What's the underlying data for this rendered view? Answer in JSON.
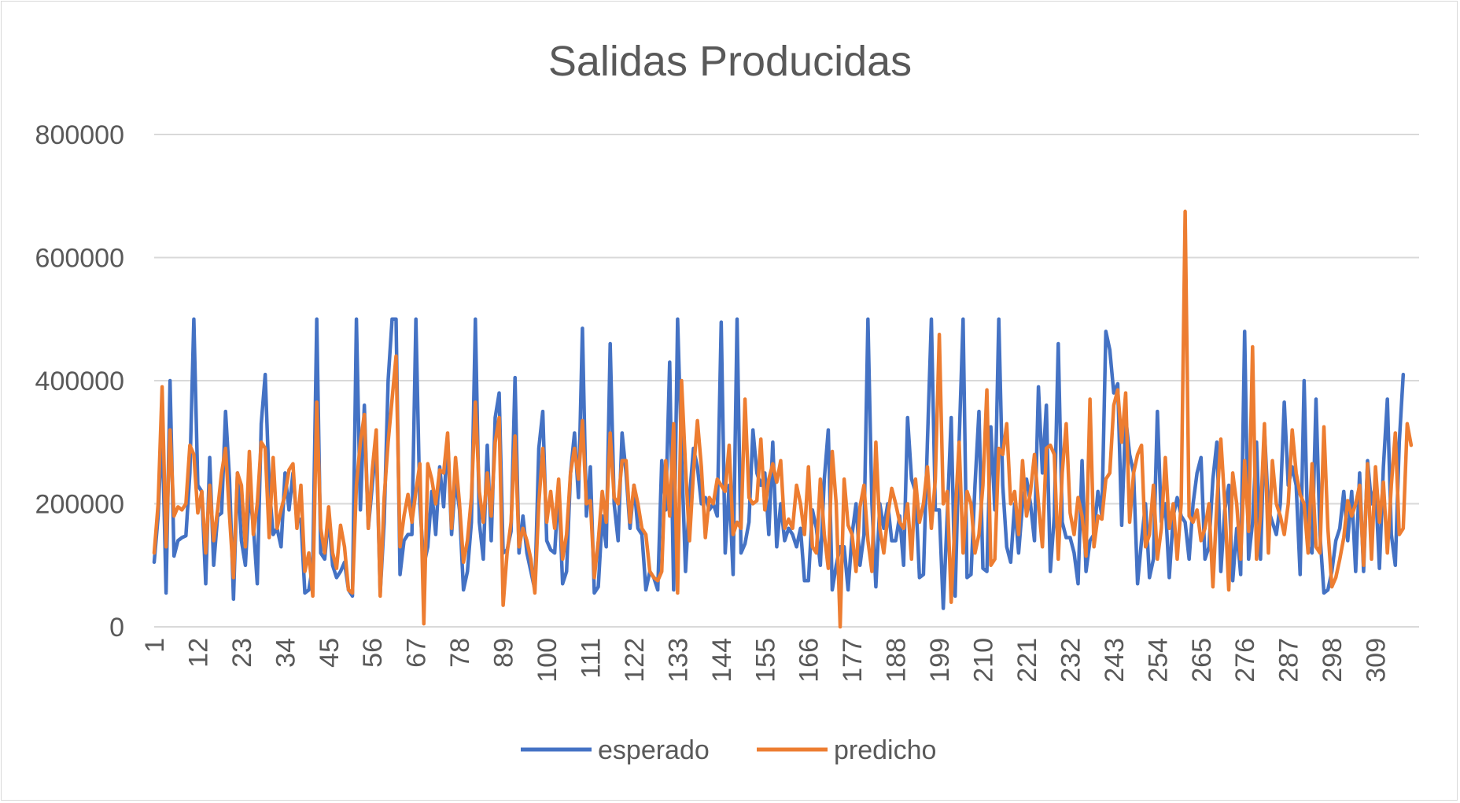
{
  "chart_data": {
    "type": "line",
    "title": "Salidas Producidas",
    "xlabel": "",
    "ylabel": "",
    "ylim": [
      0,
      800000
    ],
    "yticks": [
      0,
      200000,
      400000,
      600000,
      800000
    ],
    "ytick_labels": [
      "0",
      "200000",
      "400000",
      "600000",
      "800000"
    ],
    "x_count": 320,
    "xtick_values": [
      1,
      12,
      23,
      34,
      45,
      56,
      67,
      78,
      89,
      100,
      111,
      122,
      133,
      144,
      155,
      166,
      177,
      188,
      199,
      210,
      221,
      232,
      243,
      254,
      265,
      276,
      287,
      298,
      309
    ],
    "xtick_labels": [
      "1",
      "12",
      "23",
      "34",
      "45",
      "56",
      "67",
      "78",
      "89",
      "100",
      "111",
      "122",
      "133",
      "144",
      "155",
      "166",
      "177",
      "188",
      "199",
      "210",
      "221",
      "232",
      "243",
      "254",
      "265",
      "276",
      "287",
      "298",
      "309"
    ],
    "grid": true,
    "legend_position": "bottom",
    "series": [
      {
        "name": "esperado",
        "color": "#4472C4",
        "values": [
          105000,
          180000,
          330000,
          55000,
          400000,
          115000,
          140000,
          145000,
          148000,
          250000,
          500000,
          230000,
          220000,
          70000,
          275000,
          100000,
          180000,
          185000,
          350000,
          240000,
          45000,
          250000,
          140000,
          100000,
          220000,
          165000,
          70000,
          330000,
          410000,
          230000,
          150000,
          160000,
          130000,
          250000,
          190000,
          250000,
          170000,
          175000,
          55000,
          60000,
          100000,
          500000,
          120000,
          110000,
          180000,
          100000,
          80000,
          90000,
          105000,
          60000,
          50000,
          500000,
          190000,
          360000,
          160000,
          230000,
          300000,
          55000,
          170000,
          400000,
          500000,
          500000,
          85000,
          140000,
          150000,
          150000,
          500000,
          200000,
          100000,
          130000,
          220000,
          150000,
          260000,
          195000,
          310000,
          150000,
          240000,
          190000,
          60000,
          90000,
          170000,
          500000,
          170000,
          110000,
          295000,
          140000,
          340000,
          380000,
          120000,
          125000,
          155000,
          405000,
          120000,
          180000,
          120000,
          90000,
          60000,
          290000,
          350000,
          140000,
          125000,
          120000,
          230000,
          70000,
          90000,
          250000,
          315000,
          210000,
          485000,
          180000,
          260000,
          55000,
          65000,
          180000,
          130000,
          460000,
          200000,
          140000,
          315000,
          250000,
          160000,
          230000,
          160000,
          150000,
          60000,
          90000,
          80000,
          60000,
          270000,
          190000,
          430000,
          60000,
          500000,
          280000,
          90000,
          210000,
          290000,
          260000,
          200000,
          210000,
          190000,
          200000,
          180000,
          495000,
          120000,
          230000,
          85000,
          500000,
          120000,
          135000,
          170000,
          320000,
          250000,
          230000,
          250000,
          150000,
          300000,
          130000,
          200000,
          140000,
          160000,
          150000,
          130000,
          160000,
          75000,
          75000,
          190000,
          160000,
          100000,
          240000,
          320000,
          60000,
          100000,
          130000,
          130000,
          60000,
          150000,
          200000,
          100000,
          150000,
          500000,
          200000,
          65000,
          200000,
          160000,
          200000,
          140000,
          140000,
          180000,
          100000,
          340000,
          240000,
          220000,
          80000,
          85000,
          300000,
          500000,
          190000,
          190000,
          30000,
          180000,
          340000,
          50000,
          300000,
          500000,
          80000,
          85000,
          230000,
          350000,
          95000,
          90000,
          325000,
          190000,
          500000,
          230000,
          130000,
          105000,
          200000,
          120000,
          200000,
          240000,
          200000,
          140000,
          390000,
          250000,
          360000,
          90000,
          180000,
          460000,
          170000,
          145000,
          145000,
          120000,
          70000,
          270000,
          90000,
          140000,
          150000,
          220000,
          180000,
          480000,
          450000,
          380000,
          395000,
          165000,
          340000,
          280000,
          250000,
          70000,
          140000,
          200000,
          80000,
          110000,
          350000,
          170000,
          200000,
          80000,
          180000,
          210000,
          180000,
          170000,
          110000,
          200000,
          250000,
          275000,
          110000,
          130000,
          240000,
          300000,
          90000,
          190000,
          230000,
          75000,
          160000,
          85000,
          480000,
          110000,
          170000,
          300000,
          110000,
          320000,
          190000,
          170000,
          150000,
          200000,
          365000,
          230000,
          260000,
          230000,
          85000,
          400000,
          130000,
          120000,
          370000,
          150000,
          55000,
          60000,
          90000,
          140000,
          160000,
          220000,
          140000,
          220000,
          90000,
          250000,
          90000,
          270000,
          200000,
          230000,
          95000,
          260000,
          370000,
          150000,
          100000,
          300000,
          410000
        ]
      },
      {
        "name": "predicho",
        "color": "#ED7D31",
        "values": [
          120000,
          200000,
          390000,
          130000,
          320000,
          180000,
          195000,
          190000,
          200000,
          295000,
          280000,
          185000,
          220000,
          120000,
          230000,
          140000,
          190000,
          250000,
          290000,
          180000,
          80000,
          250000,
          230000,
          130000,
          285000,
          150000,
          200000,
          300000,
          290000,
          145000,
          275000,
          160000,
          190000,
          215000,
          255000,
          265000,
          160000,
          230000,
          90000,
          120000,
          50000,
          365000,
          160000,
          120000,
          195000,
          120000,
          95000,
          165000,
          130000,
          60000,
          55000,
          230000,
          300000,
          345000,
          160000,
          255000,
          320000,
          50000,
          210000,
          300000,
          370000,
          440000,
          130000,
          180000,
          215000,
          170000,
          220000,
          265000,
          5000,
          265000,
          240000,
          200000,
          255000,
          250000,
          315000,
          160000,
          275000,
          200000,
          105000,
          140000,
          210000,
          365000,
          220000,
          170000,
          250000,
          180000,
          300000,
          340000,
          35000,
          120000,
          170000,
          310000,
          130000,
          160000,
          140000,
          110000,
          55000,
          200000,
          290000,
          170000,
          220000,
          160000,
          240000,
          110000,
          150000,
          250000,
          290000,
          240000,
          335000,
          200000,
          205000,
          80000,
          140000,
          220000,
          170000,
          315000,
          210000,
          200000,
          270000,
          270000,
          170000,
          230000,
          200000,
          160000,
          150000,
          90000,
          80000,
          75000,
          90000,
          270000,
          180000,
          330000,
          55000,
          400000,
          260000,
          140000,
          250000,
          335000,
          260000,
          145000,
          210000,
          200000,
          240000,
          230000,
          220000,
          295000,
          150000,
          170000,
          160000,
          370000,
          210000,
          200000,
          205000,
          305000,
          190000,
          240000,
          265000,
          235000,
          270000,
          160000,
          175000,
          160000,
          230000,
          200000,
          150000,
          260000,
          130000,
          120000,
          240000,
          150000,
          95000,
          285000,
          200000,
          0,
          240000,
          165000,
          150000,
          90000,
          195000,
          230000,
          140000,
          90000,
          300000,
          160000,
          120000,
          180000,
          225000,
          200000,
          170000,
          160000,
          200000,
          110000,
          240000,
          170000,
          200000,
          260000,
          160000,
          240000,
          475000,
          200000,
          220000,
          40000,
          180000,
          300000,
          120000,
          220000,
          200000,
          120000,
          150000,
          230000,
          385000,
          100000,
          110000,
          290000,
          280000,
          330000,
          200000,
          220000,
          150000,
          270000,
          180000,
          220000,
          280000,
          200000,
          130000,
          290000,
          295000,
          280000,
          110000,
          250000,
          330000,
          185000,
          150000,
          210000,
          180000,
          115000,
          370000,
          130000,
          180000,
          175000,
          240000,
          250000,
          360000,
          385000,
          300000,
          380000,
          170000,
          250000,
          280000,
          295000,
          130000,
          150000,
          230000,
          110000,
          160000,
          275000,
          160000,
          200000,
          110000,
          200000,
          675000,
          180000,
          170000,
          190000,
          140000,
          160000,
          200000,
          65000,
          200000,
          305000,
          200000,
          60000,
          250000,
          200000,
          110000,
          270000,
          155000,
          455000,
          110000,
          180000,
          330000,
          120000,
          270000,
          200000,
          180000,
          150000,
          200000,
          320000,
          250000,
          215000,
          200000,
          120000,
          265000,
          130000,
          120000,
          325000,
          160000,
          65000,
          80000,
          110000,
          145000,
          205000,
          180000,
          200000,
          230000,
          100000,
          265000,
          110000,
          260000,
          170000,
          235000,
          120000,
          230000,
          315000,
          150000,
          160000,
          330000,
          295000
        ]
      }
    ]
  }
}
